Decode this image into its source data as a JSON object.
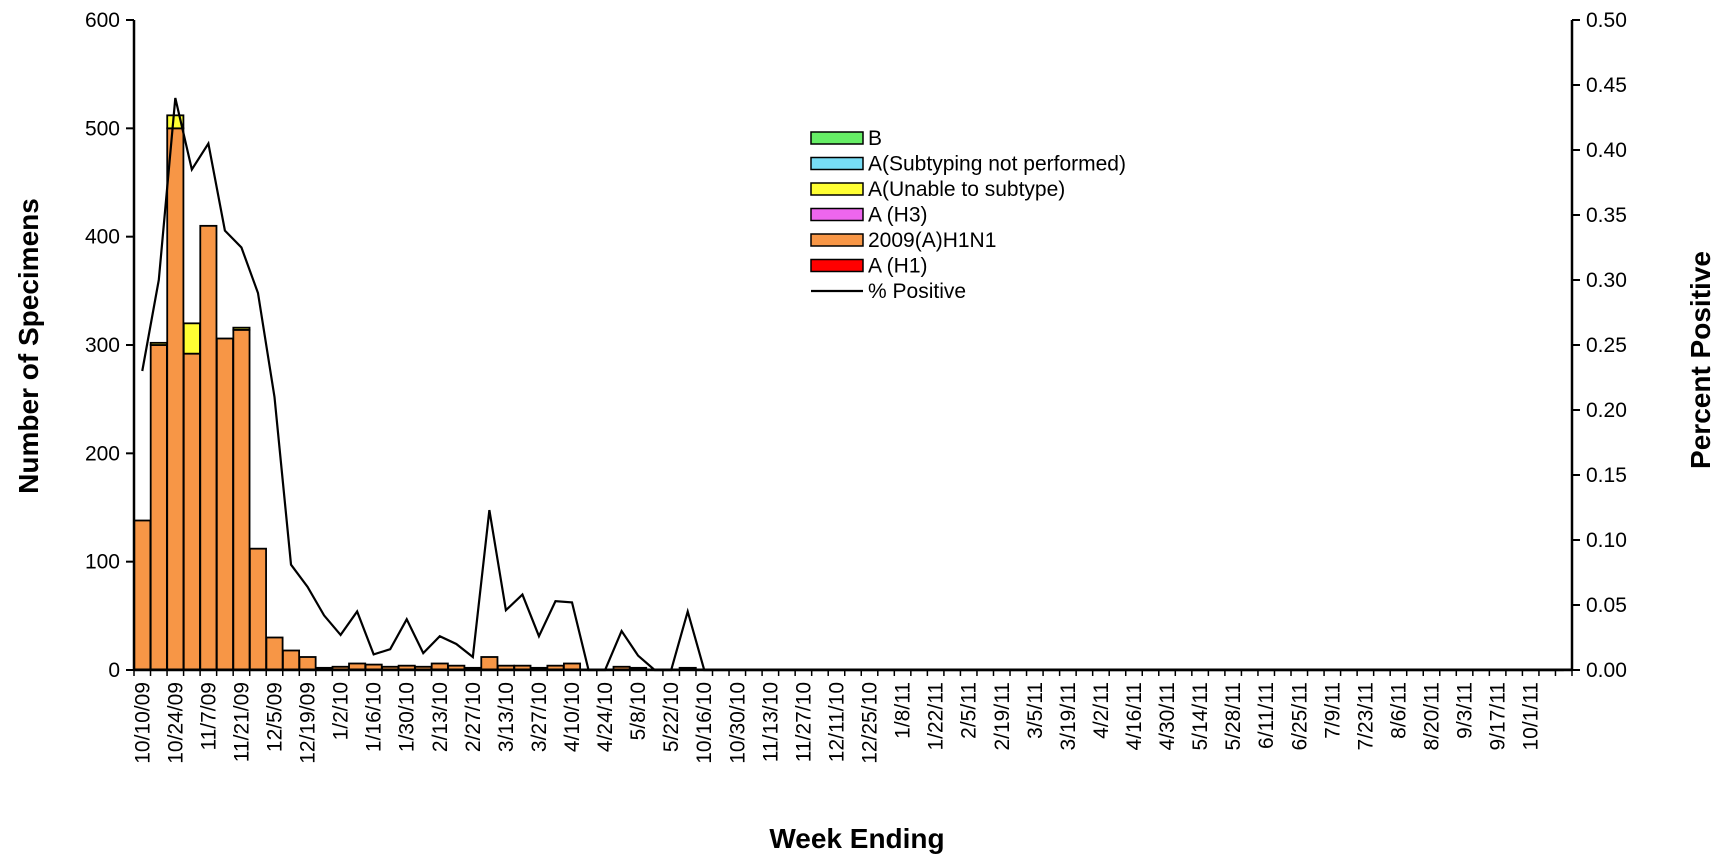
{
  "chart_data": {
    "type": "bar",
    "stacked": true,
    "xlabel": "Week Ending",
    "ylabel": "Number of Specimens",
    "y2label": "Percent Positive",
    "ylim": [
      0,
      600
    ],
    "y2lim": [
      0,
      0.5
    ],
    "yticks": [
      "0",
      "100",
      "200",
      "300",
      "400",
      "500",
      "600"
    ],
    "y2ticks": [
      "0.00",
      "0.05",
      "0.10",
      "0.15",
      "0.20",
      "0.25",
      "0.30",
      "0.35",
      "0.40",
      "0.45",
      "0.50"
    ],
    "x_tick_labels": [
      "10/10/09",
      "10/24/09",
      "11/7/09",
      "11/21/09",
      "12/5/09",
      "12/19/09",
      "1/2/10",
      "1/16/10",
      "1/30/10",
      "2/13/10",
      "2/27/10",
      "3/13/10",
      "3/27/10",
      "4/10/10",
      "4/24/10",
      "5/8/10",
      "5/22/10",
      "10/16/10",
      "10/30/10",
      "11/13/10",
      "11/27/10",
      "12/11/10",
      "12/25/10",
      "1/8/11",
      "1/22/11",
      "2/5/11",
      "2/19/11",
      "3/5/11",
      "3/19/11",
      "4/2/11",
      "4/16/11",
      "4/30/11",
      "5/14/11",
      "5/28/11",
      "6/11/11",
      "6/25/11",
      "7/9/11",
      "7/23/11",
      "8/6/11",
      "8/20/11",
      "9/3/11",
      "9/17/11",
      "10/1/11"
    ],
    "legend": [
      {
        "name": "B",
        "color": "#66EE66"
      },
      {
        "name": "A(Subtyping not performed)",
        "color": "#77DDF5"
      },
      {
        "name": "A(Unable to subtype)",
        "color": "#FFFF33"
      },
      {
        "name": "A (H3)",
        "color": "#EE66EE"
      },
      {
        "name": "2009(A)H1N1",
        "color": "#F79646"
      },
      {
        "name": "A (H1)",
        "color": "#FF0000"
      },
      {
        "name": "% Positive",
        "color": "#000000",
        "kind": "line"
      }
    ],
    "legend_position": "top-center",
    "bar_series": [
      {
        "name": "A (H1)",
        "color": "#FF0000",
        "values": [
          0,
          0,
          0,
          0,
          0,
          0,
          0,
          0,
          0,
          0,
          0,
          0,
          0,
          0,
          0,
          0,
          0,
          0,
          0,
          0,
          0,
          0,
          0,
          0,
          0,
          0,
          0,
          0,
          0,
          0,
          0,
          0,
          0,
          0,
          0,
          0,
          0,
          0,
          0,
          0,
          0,
          0,
          0,
          0,
          0,
          0,
          0,
          0,
          0,
          0,
          0,
          0,
          0,
          0,
          0,
          0,
          0,
          0,
          0,
          0,
          0,
          0,
          0,
          0,
          0,
          0,
          0,
          0,
          0,
          0,
          0,
          0,
          0,
          0,
          0,
          0,
          0,
          0,
          0,
          0,
          0,
          0,
          0,
          0,
          0,
          0,
          0
        ]
      },
      {
        "name": "2009(A)H1N1",
        "color": "#F79646",
        "values": [
          138,
          300,
          500,
          292,
          410,
          306,
          314,
          112,
          30,
          18,
          12,
          2,
          3,
          6,
          5,
          3,
          4,
          3,
          6,
          4,
          2,
          12,
          4,
          4,
          2,
          4,
          6,
          0,
          0,
          3,
          2,
          0,
          0,
          2,
          0,
          0,
          0,
          0,
          0,
          0,
          0,
          0,
          0,
          0,
          0,
          0,
          0,
          0,
          0,
          0,
          0,
          0,
          0,
          0,
          0,
          0,
          0,
          0,
          0,
          0,
          0,
          0,
          0,
          0,
          0,
          0,
          0,
          0,
          0,
          0,
          0,
          0,
          0,
          0,
          0,
          0,
          0,
          0,
          0,
          0,
          0,
          0,
          0,
          0,
          0,
          0,
          0
        ]
      },
      {
        "name": "A (H3)",
        "color": "#EE66EE",
        "values": [
          0,
          0,
          0,
          0,
          0,
          0,
          0,
          0,
          0,
          0,
          0,
          0,
          0,
          0,
          0,
          0,
          0,
          0,
          0,
          0,
          0,
          0,
          0,
          0,
          0,
          0,
          0,
          0,
          0,
          0,
          0,
          0,
          0,
          0,
          0,
          0,
          0,
          0,
          0,
          0,
          0,
          0,
          0,
          0,
          0,
          0,
          0,
          0,
          0,
          0,
          0,
          0,
          0,
          0,
          0,
          0,
          0,
          0,
          0,
          0,
          0,
          0,
          0,
          0,
          0,
          0,
          0,
          0,
          0,
          0,
          0,
          0,
          0,
          0,
          0,
          0,
          0,
          0,
          0,
          0,
          0,
          0,
          0,
          0,
          0,
          0,
          0
        ]
      },
      {
        "name": "A(Unable to subtype)",
        "color": "#FFFF33",
        "values": [
          0,
          2,
          12,
          28,
          0,
          0,
          2,
          0,
          0,
          0,
          0,
          0,
          0,
          0,
          0,
          0,
          0,
          0,
          0,
          0,
          0,
          0,
          0,
          0,
          0,
          0,
          0,
          0,
          0,
          0,
          0,
          0,
          0,
          0,
          0,
          0,
          0,
          0,
          0,
          0,
          0,
          0,
          0,
          0,
          0,
          0,
          0,
          0,
          0,
          0,
          0,
          0,
          0,
          0,
          0,
          0,
          0,
          0,
          0,
          0,
          0,
          0,
          0,
          0,
          0,
          0,
          0,
          0,
          0,
          0,
          0,
          0,
          0,
          0,
          0,
          0,
          0,
          0,
          0,
          0,
          0,
          0,
          0,
          0,
          0,
          0,
          0
        ]
      },
      {
        "name": "A(Subtyping not performed)",
        "color": "#77DDF5",
        "values": [
          0,
          0,
          0,
          0,
          0,
          0,
          0,
          0,
          0,
          0,
          0,
          0,
          0,
          0,
          0,
          0,
          0,
          0,
          0,
          0,
          0,
          0,
          0,
          0,
          0,
          0,
          0,
          0,
          0,
          0,
          0,
          0,
          0,
          0,
          0,
          0,
          0,
          0,
          0,
          0,
          0,
          0,
          0,
          0,
          0,
          0,
          0,
          0,
          0,
          0,
          0,
          0,
          0,
          0,
          0,
          0,
          0,
          0,
          0,
          0,
          0,
          0,
          0,
          0,
          0,
          0,
          0,
          0,
          0,
          0,
          0,
          0,
          0,
          0,
          0,
          0,
          0,
          0,
          0,
          0,
          0,
          0,
          0,
          0,
          0,
          0,
          0
        ]
      },
      {
        "name": "B",
        "color": "#66EE66",
        "values": [
          0,
          0,
          0,
          0,
          0,
          0,
          0,
          0,
          0,
          0,
          0,
          0,
          0,
          0,
          0,
          0,
          0,
          0,
          0,
          0,
          0,
          0,
          0,
          0,
          0,
          0,
          0,
          0,
          0,
          0,
          0,
          0,
          0,
          0,
          0,
          0,
          0,
          0,
          0,
          0,
          0,
          0,
          0,
          0,
          0,
          0,
          0,
          0,
          0,
          0,
          0,
          0,
          0,
          0,
          0,
          0,
          0,
          0,
          0,
          0,
          0,
          0,
          0,
          0,
          0,
          0,
          0,
          0,
          0,
          0,
          0,
          0,
          0,
          0,
          0,
          0,
          0,
          0,
          0,
          0,
          0,
          0,
          0,
          0,
          0,
          0,
          0
        ]
      }
    ],
    "line_series": {
      "name": "% Positive",
      "color": "#000000",
      "values": [
        0.23,
        0.3,
        0.44,
        0.385,
        0.405,
        0.338,
        0.325,
        0.29,
        0.21,
        0.081,
        0.064,
        0.042,
        0.027,
        0.045,
        0.012,
        0.016,
        0.039,
        0.013,
        0.026,
        0.02,
        0.01,
        0.123,
        0.046,
        0.058,
        0.026,
        0.053,
        0.052,
        0,
        0,
        0.03,
        0.011,
        0,
        0,
        0.045,
        0,
        0,
        0,
        0,
        0,
        0,
        0,
        0,
        0,
        0,
        0,
        0,
        0,
        0,
        0,
        0,
        0,
        0,
        0,
        0,
        0,
        0,
        0,
        0,
        0,
        0,
        0,
        0,
        0,
        0,
        0,
        0,
        0,
        0,
        0,
        0,
        0,
        0,
        0,
        0,
        0,
        0,
        0,
        0,
        0,
        0,
        0,
        0,
        0,
        0,
        0,
        0,
        0
      ]
    }
  }
}
